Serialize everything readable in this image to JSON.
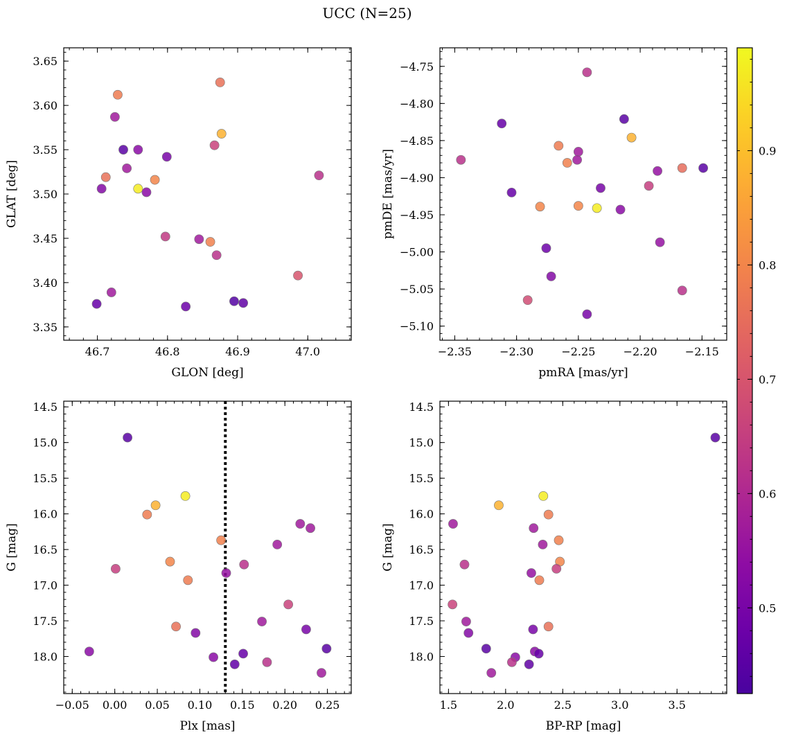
{
  "title": "UCC (N=25)",
  "chart_data": [
    {
      "type": "scatter",
      "xlabel": "GLON [deg]",
      "ylabel": "GLAT [deg]",
      "xlim": [
        46.652,
        47.062
      ],
      "ylim": [
        3.335,
        3.665
      ],
      "xticks": [
        46.7,
        46.8,
        46.9,
        47.0
      ],
      "xticklabels": [
        "46.7",
        "46.8",
        "46.9",
        "47.0"
      ],
      "yticks": [
        3.35,
        3.4,
        3.45,
        3.5,
        3.55,
        3.6,
        3.65
      ],
      "yticklabels": [
        "3.35",
        "3.40",
        "3.45",
        "3.50",
        "3.55",
        "3.60",
        "3.65"
      ],
      "points": [
        {
          "x": 46.729,
          "y": 3.612,
          "c": 0.78
        },
        {
          "x": 46.875,
          "y": 3.626,
          "c": 0.76
        },
        {
          "x": 46.725,
          "y": 3.587,
          "c": 0.57
        },
        {
          "x": 46.877,
          "y": 3.568,
          "c": 0.88
        },
        {
          "x": 46.737,
          "y": 3.55,
          "c": 0.45
        },
        {
          "x": 46.758,
          "y": 3.55,
          "c": 0.53
        },
        {
          "x": 46.867,
          "y": 3.555,
          "c": 0.66
        },
        {
          "x": 46.799,
          "y": 3.542,
          "c": 0.5
        },
        {
          "x": 46.742,
          "y": 3.529,
          "c": 0.57
        },
        {
          "x": 46.712,
          "y": 3.519,
          "c": 0.76
        },
        {
          "x": 46.782,
          "y": 3.516,
          "c": 0.8
        },
        {
          "x": 47.016,
          "y": 3.521,
          "c": 0.62
        },
        {
          "x": 46.706,
          "y": 3.506,
          "c": 0.52
        },
        {
          "x": 46.758,
          "y": 3.506,
          "c": 0.97
        },
        {
          "x": 46.77,
          "y": 3.502,
          "c": 0.53
        },
        {
          "x": 46.797,
          "y": 3.452,
          "c": 0.64
        },
        {
          "x": 46.845,
          "y": 3.449,
          "c": 0.57
        },
        {
          "x": 46.861,
          "y": 3.446,
          "c": 0.79
        },
        {
          "x": 46.87,
          "y": 3.431,
          "c": 0.62
        },
        {
          "x": 46.986,
          "y": 3.408,
          "c": 0.7
        },
        {
          "x": 46.72,
          "y": 3.389,
          "c": 0.57
        },
        {
          "x": 46.699,
          "y": 3.376,
          "c": 0.47
        },
        {
          "x": 46.826,
          "y": 3.373,
          "c": 0.48
        },
        {
          "x": 46.895,
          "y": 3.379,
          "c": 0.44
        },
        {
          "x": 46.908,
          "y": 3.377,
          "c": 0.46
        }
      ]
    },
    {
      "type": "scatter",
      "xlabel": "pmRA [mas/yr]",
      "ylabel": "pmDE [mas/yr]",
      "xlim": [
        -2.362,
        -2.13
      ],
      "ylim": [
        -5.119,
        -4.725
      ],
      "xticks": [
        -2.35,
        -2.3,
        -2.25,
        -2.2,
        -2.15
      ],
      "xticklabels": [
        "−2.35",
        "−2.30",
        "−2.25",
        "−2.20",
        "−2.15"
      ],
      "yticks": [
        -5.1,
        -5.05,
        -5.0,
        -4.95,
        -4.9,
        -4.85,
        -4.8,
        -4.75
      ],
      "yticklabels": [
        "−5.10",
        "−5.05",
        "−5.00",
        "−4.95",
        "−4.90",
        "−4.85",
        "−4.80",
        "−4.75"
      ],
      "points": [
        {
          "x": -2.243,
          "y": -4.758,
          "c": 0.62
        },
        {
          "x": -2.312,
          "y": -4.827,
          "c": 0.47
        },
        {
          "x": -2.213,
          "y": -4.821,
          "c": 0.45
        },
        {
          "x": -2.207,
          "y": -4.846,
          "c": 0.88
        },
        {
          "x": -2.266,
          "y": -4.857,
          "c": 0.78
        },
        {
          "x": -2.25,
          "y": -4.865,
          "c": 0.57
        },
        {
          "x": -2.345,
          "y": -4.876,
          "c": 0.62
        },
        {
          "x": -2.259,
          "y": -4.88,
          "c": 0.79
        },
        {
          "x": -2.251,
          "y": -4.876,
          "c": 0.57
        },
        {
          "x": -2.186,
          "y": -4.891,
          "c": 0.55
        },
        {
          "x": -2.166,
          "y": -4.887,
          "c": 0.75
        },
        {
          "x": -2.149,
          "y": -4.887,
          "c": 0.45
        },
        {
          "x": -2.304,
          "y": -4.92,
          "c": 0.47
        },
        {
          "x": -2.232,
          "y": -4.914,
          "c": 0.5
        },
        {
          "x": -2.193,
          "y": -4.911,
          "c": 0.65
        },
        {
          "x": -2.281,
          "y": -4.939,
          "c": 0.8
        },
        {
          "x": -2.25,
          "y": -4.938,
          "c": 0.8
        },
        {
          "x": -2.235,
          "y": -4.941,
          "c": 0.97
        },
        {
          "x": -2.216,
          "y": -4.943,
          "c": 0.53
        },
        {
          "x": -2.276,
          "y": -4.995,
          "c": 0.48
        },
        {
          "x": -2.184,
          "y": -4.987,
          "c": 0.55
        },
        {
          "x": -2.272,
          "y": -5.033,
          "c": 0.52
        },
        {
          "x": -2.166,
          "y": -5.052,
          "c": 0.62
        },
        {
          "x": -2.291,
          "y": -5.065,
          "c": 0.68
        },
        {
          "x": -2.243,
          "y": -5.084,
          "c": 0.5
        }
      ]
    },
    {
      "type": "scatter",
      "xlabel": "Plx [mas]",
      "ylabel": "G [mag]",
      "xlim": [
        -0.06,
        0.278
      ],
      "ylim": [
        18.52,
        14.42
      ],
      "invert_y": true,
      "vline": 0.13,
      "xticks": [
        -0.05,
        0.0,
        0.05,
        0.1,
        0.15,
        0.2,
        0.25
      ],
      "xticklabels": [
        "−0.05",
        "0.00",
        "0.05",
        "0.10",
        "0.15",
        "0.20",
        "0.25"
      ],
      "yticks": [
        14.5,
        15.0,
        15.5,
        16.0,
        16.5,
        17.0,
        17.5,
        18.0
      ],
      "yticklabels": [
        "14.5",
        "15.0",
        "15.5",
        "16.0",
        "16.5",
        "17.0",
        "17.5",
        "18.0"
      ],
      "points": [
        {
          "x": 0.015,
          "y": 14.93,
          "c": 0.45
        },
        {
          "x": 0.083,
          "y": 15.75,
          "c": 0.97
        },
        {
          "x": 0.048,
          "y": 15.88,
          "c": 0.88
        },
        {
          "x": 0.038,
          "y": 16.01,
          "c": 0.78
        },
        {
          "x": 0.218,
          "y": 16.14,
          "c": 0.57
        },
        {
          "x": 0.23,
          "y": 16.2,
          "c": 0.57
        },
        {
          "x": 0.125,
          "y": 16.37,
          "c": 0.79
        },
        {
          "x": 0.191,
          "y": 16.43,
          "c": 0.57
        },
        {
          "x": 0.065,
          "y": 16.67,
          "c": 0.8
        },
        {
          "x": 0.152,
          "y": 16.71,
          "c": 0.62
        },
        {
          "x": 0.001,
          "y": 16.77,
          "c": 0.65
        },
        {
          "x": 0.131,
          "y": 16.83,
          "c": 0.55
        },
        {
          "x": 0.086,
          "y": 16.93,
          "c": 0.78
        },
        {
          "x": 0.204,
          "y": 17.27,
          "c": 0.66
        },
        {
          "x": 0.173,
          "y": 17.51,
          "c": 0.57
        },
        {
          "x": 0.072,
          "y": 17.58,
          "c": 0.76
        },
        {
          "x": 0.225,
          "y": 17.62,
          "c": 0.5
        },
        {
          "x": 0.095,
          "y": 17.67,
          "c": 0.52
        },
        {
          "x": 0.249,
          "y": 17.89,
          "c": 0.45
        },
        {
          "x": -0.03,
          "y": 17.93,
          "c": 0.53
        },
        {
          "x": 0.151,
          "y": 17.96,
          "c": 0.47
        },
        {
          "x": 0.116,
          "y": 18.01,
          "c": 0.53
        },
        {
          "x": 0.179,
          "y": 18.08,
          "c": 0.62
        },
        {
          "x": 0.141,
          "y": 18.11,
          "c": 0.46
        },
        {
          "x": 0.243,
          "y": 18.23,
          "c": 0.57
        }
      ]
    },
    {
      "type": "scatter",
      "xlabel": "BP-RP [mag]",
      "ylabel": "G [mag]",
      "xlim": [
        1.425,
        3.935
      ],
      "ylim": [
        18.52,
        14.42
      ],
      "invert_y": true,
      "xticks": [
        1.5,
        2.0,
        2.5,
        3.0,
        3.5
      ],
      "xticklabels": [
        "1.5",
        "2.0",
        "2.5",
        "3.0",
        "3.5"
      ],
      "yticks": [
        14.5,
        15.0,
        15.5,
        16.0,
        16.5,
        17.0,
        17.5,
        18.0
      ],
      "yticklabels": [
        "14.5",
        "15.0",
        "15.5",
        "16.0",
        "16.5",
        "17.0",
        "17.5",
        "18.0"
      ],
      "points": [
        {
          "x": 3.835,
          "y": 14.93,
          "c": 0.45
        },
        {
          "x": 2.33,
          "y": 15.75,
          "c": 0.97
        },
        {
          "x": 1.94,
          "y": 15.88,
          "c": 0.88
        },
        {
          "x": 2.375,
          "y": 16.01,
          "c": 0.78
        },
        {
          "x": 1.54,
          "y": 16.14,
          "c": 0.57
        },
        {
          "x": 2.245,
          "y": 16.2,
          "c": 0.57
        },
        {
          "x": 2.465,
          "y": 16.37,
          "c": 0.79
        },
        {
          "x": 2.325,
          "y": 16.43,
          "c": 0.57
        },
        {
          "x": 2.475,
          "y": 16.67,
          "c": 0.8
        },
        {
          "x": 1.64,
          "y": 16.71,
          "c": 0.62
        },
        {
          "x": 2.445,
          "y": 16.77,
          "c": 0.65
        },
        {
          "x": 2.225,
          "y": 16.83,
          "c": 0.55
        },
        {
          "x": 2.295,
          "y": 16.93,
          "c": 0.78
        },
        {
          "x": 1.535,
          "y": 17.27,
          "c": 0.66
        },
        {
          "x": 1.655,
          "y": 17.51,
          "c": 0.57
        },
        {
          "x": 2.375,
          "y": 17.58,
          "c": 0.76
        },
        {
          "x": 2.24,
          "y": 17.62,
          "c": 0.5
        },
        {
          "x": 1.675,
          "y": 17.67,
          "c": 0.52
        },
        {
          "x": 1.83,
          "y": 17.89,
          "c": 0.45
        },
        {
          "x": 2.255,
          "y": 17.93,
          "c": 0.53
        },
        {
          "x": 2.29,
          "y": 17.96,
          "c": 0.47
        },
        {
          "x": 2.085,
          "y": 18.01,
          "c": 0.53
        },
        {
          "x": 2.055,
          "y": 18.08,
          "c": 0.62
        },
        {
          "x": 2.205,
          "y": 18.11,
          "c": 0.46
        },
        {
          "x": 1.875,
          "y": 18.23,
          "c": 0.57
        }
      ]
    }
  ],
  "colorbar": {
    "colormap": "plasma",
    "range": [
      0.425,
      0.99
    ],
    "ticks": [
      0.5,
      0.6,
      0.7,
      0.8,
      0.9
    ],
    "ticklabels": [
      "0.5",
      "0.6",
      "0.7",
      "0.8",
      "0.9"
    ]
  }
}
